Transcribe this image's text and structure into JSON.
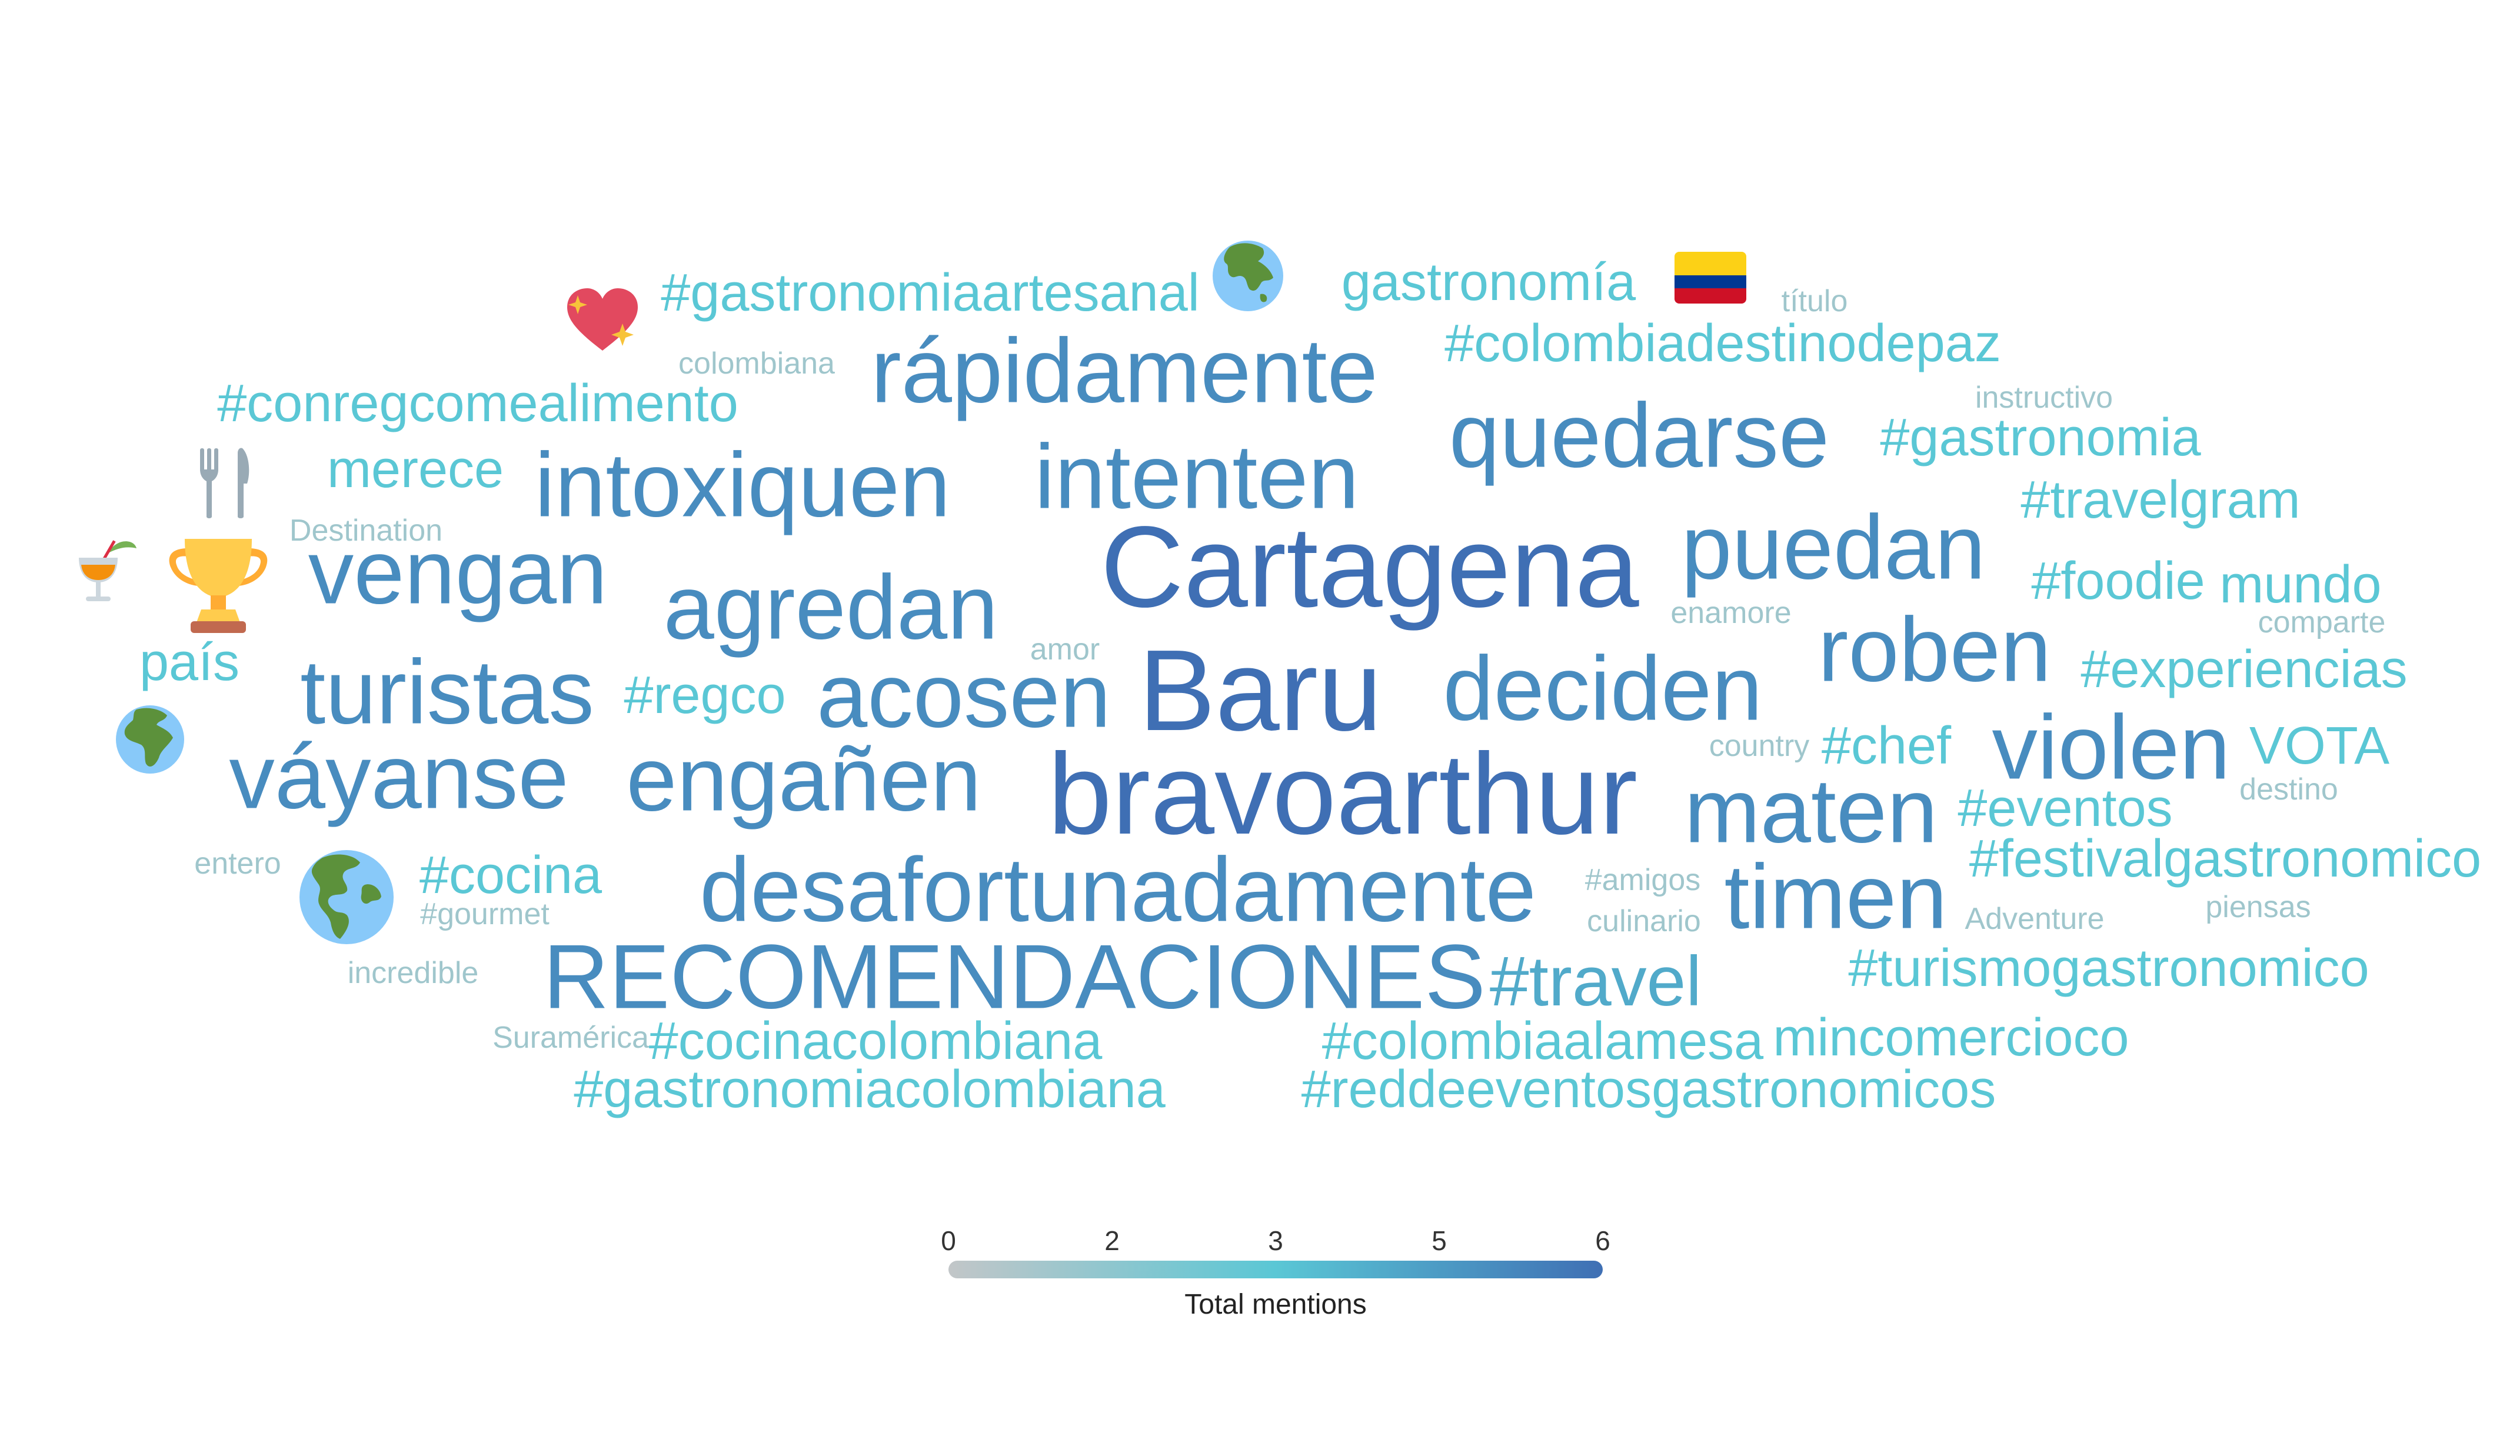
{
  "chart_data": {
    "type": "wordcloud",
    "colorbar": {
      "title": "Total mentions",
      "ticks": [
        "0",
        "2",
        "3",
        "5",
        "6"
      ],
      "range": [
        0,
        6
      ],
      "colors": [
        "#c2c6c8",
        "#5ac7d5",
        "#3f6fb4"
      ]
    },
    "words": [
      {
        "text": "Cartagena",
        "value": 6
      },
      {
        "text": "bravoarthur",
        "value": 6
      },
      {
        "text": "Baru",
        "value": 6
      },
      {
        "text": "RECOMENDACIONES",
        "value": 5
      },
      {
        "text": "quedarse",
        "value": 5
      },
      {
        "text": "violen",
        "value": 5
      },
      {
        "text": "desafortunadamente",
        "value": 5
      },
      {
        "text": "rápidamente",
        "value": 5
      },
      {
        "text": "intoxiquen",
        "value": 5
      },
      {
        "text": "intenten",
        "value": 5
      },
      {
        "text": "puedan",
        "value": 5
      },
      {
        "text": "vengan",
        "value": 5
      },
      {
        "text": "agredan",
        "value": 5
      },
      {
        "text": "turistas",
        "value": 5
      },
      {
        "text": "acosen",
        "value": 5
      },
      {
        "text": "deciden",
        "value": 5
      },
      {
        "text": "roben",
        "value": 5
      },
      {
        "text": "váyanse",
        "value": 5
      },
      {
        "text": "engañen",
        "value": 5
      },
      {
        "text": "maten",
        "value": 5
      },
      {
        "text": "timen",
        "value": 5
      },
      {
        "text": "#travel",
        "value": 4
      },
      {
        "text": "#gastronomiaartesanal",
        "value": 3
      },
      {
        "text": "gastronomía",
        "value": 3
      },
      {
        "text": "#colombiadestinodepaz",
        "value": 3
      },
      {
        "text": "#conregcomealimento",
        "value": 3
      },
      {
        "text": "#gastronomia",
        "value": 3
      },
      {
        "text": "merece",
        "value": 3
      },
      {
        "text": "#travelgram",
        "value": 3
      },
      {
        "text": "#foodie",
        "value": 3
      },
      {
        "text": "mundo",
        "value": 3
      },
      {
        "text": "país",
        "value": 3
      },
      {
        "text": "#regco",
        "value": 3
      },
      {
        "text": "#experiencias",
        "value": 3
      },
      {
        "text": "#chef",
        "value": 3
      },
      {
        "text": "VOTA",
        "value": 3
      },
      {
        "text": "#eventos",
        "value": 3
      },
      {
        "text": "#cocina",
        "value": 3
      },
      {
        "text": "#festivalgastronomico",
        "value": 3
      },
      {
        "text": "#turismogastronomico",
        "value": 3
      },
      {
        "text": "#cocinacolombiana",
        "value": 3
      },
      {
        "text": "#colombiaalamesa",
        "value": 3
      },
      {
        "text": "mincomercioco",
        "value": 3
      },
      {
        "text": "#gastronomiacolombiana",
        "value": 3
      },
      {
        "text": "#reddeeventosgastronomicos",
        "value": 3
      },
      {
        "text": "título",
        "value": 1
      },
      {
        "text": "colombiana",
        "value": 1
      },
      {
        "text": "instructivo",
        "value": 1
      },
      {
        "text": "Destination",
        "value": 1
      },
      {
        "text": "enamore",
        "value": 1
      },
      {
        "text": "comparte",
        "value": 1
      },
      {
        "text": "amor",
        "value": 1
      },
      {
        "text": "country",
        "value": 1
      },
      {
        "text": "destino",
        "value": 1
      },
      {
        "text": "entero",
        "value": 1
      },
      {
        "text": "#amigos",
        "value": 1
      },
      {
        "text": "#gourmet",
        "value": 1
      },
      {
        "text": "culinario",
        "value": 1
      },
      {
        "text": "Adventure",
        "value": 1
      },
      {
        "text": "piensas",
        "value": 1
      },
      {
        "text": "incredible",
        "value": 1
      },
      {
        "text": "Suramérica",
        "value": 1
      }
    ],
    "emojis": [
      "sparkling-heart",
      "globe-asia",
      "colombia-flag",
      "fork-and-knife",
      "tropical-drink",
      "trophy",
      "globe-africa",
      "globe-americas"
    ]
  }
}
